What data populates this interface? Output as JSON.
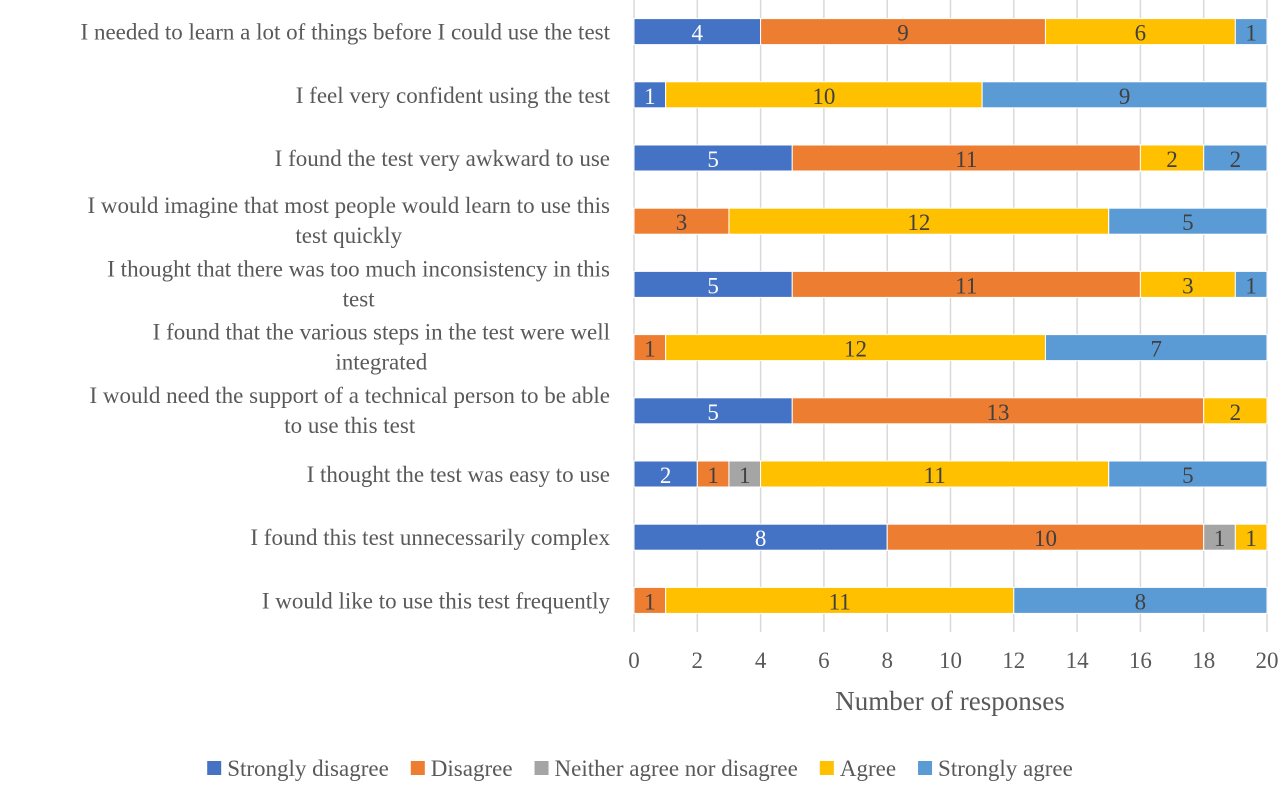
{
  "chart_data": {
    "type": "bar",
    "orientation": "horizontal",
    "stacked": true,
    "title": "",
    "xlabel": "Number of responses",
    "ylabel": "",
    "xlim": [
      0,
      20
    ],
    "x_ticks": [
      0,
      2,
      4,
      6,
      8,
      10,
      12,
      14,
      16,
      18,
      20
    ],
    "grid": "vertical",
    "legend_position": "bottom",
    "categories": [
      "I needed to learn a lot of things before I could use the test",
      "I feel very confident using the test",
      "I found the test very awkward to use",
      "I would imagine that most people would learn to use this test quickly",
      "I thought that there was too much inconsistency in this test",
      "I found that the various steps in the test were well integrated",
      "I would need the support of a technical person to be able to use this test",
      "I thought the test was easy to use",
      "I found this test unnecessarily complex",
      "I would like to use this test frequently"
    ],
    "category_lines": [
      [
        "I needed to learn a lot of things before I could use the test"
      ],
      [
        "I feel very confident using the test"
      ],
      [
        "I found the test very awkward to use"
      ],
      [
        "I would imagine that most people would learn to use this",
        "test quickly"
      ],
      [
        "I thought that there was too much inconsistency in this",
        "test"
      ],
      [
        "I found that the various steps in the test were well",
        "integrated"
      ],
      [
        "I would need the support of a technical person to be able",
        "to use this test"
      ],
      [
        "I thought the test was easy to use"
      ],
      [
        "I found this test unnecessarily complex"
      ],
      [
        "I would like to use this test frequently"
      ]
    ],
    "series": [
      {
        "name": "Strongly disagree",
        "color": "#4472C4",
        "label_color": "#ffffff",
        "values": [
          4,
          1,
          5,
          0,
          5,
          0,
          5,
          2,
          8,
          0
        ]
      },
      {
        "name": "Disagree",
        "color": "#ED7D31",
        "label_color": "#404040",
        "values": [
          9,
          0,
          11,
          3,
          11,
          1,
          13,
          1,
          10,
          1
        ]
      },
      {
        "name": "Neither agree nor disagree",
        "color": "#A5A5A5",
        "label_color": "#404040",
        "values": [
          0,
          0,
          0,
          0,
          0,
          0,
          0,
          1,
          1,
          0
        ]
      },
      {
        "name": "Agree",
        "color": "#FFC000",
        "label_color": "#404040",
        "values": [
          6,
          10,
          2,
          12,
          3,
          12,
          2,
          11,
          1,
          11
        ]
      },
      {
        "name": "Strongly agree",
        "color": "#5B9BD5",
        "label_color": "#404040",
        "values": [
          1,
          9,
          2,
          5,
          1,
          7,
          0,
          5,
          0,
          8
        ]
      }
    ]
  }
}
